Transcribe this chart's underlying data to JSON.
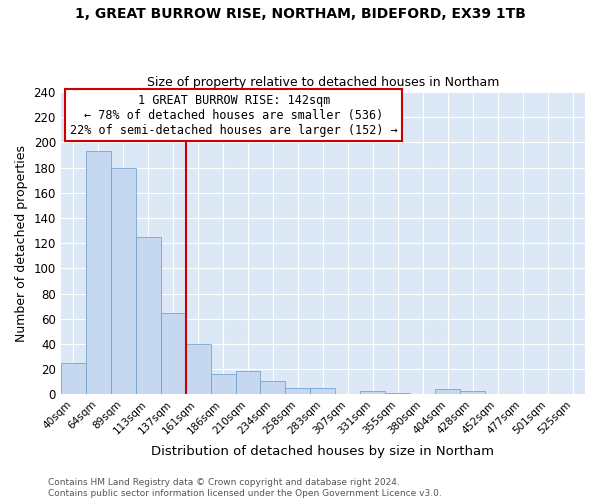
{
  "title": "1, GREAT BURROW RISE, NORTHAM, BIDEFORD, EX39 1TB",
  "subtitle": "Size of property relative to detached houses in Northam",
  "xlabel": "Distribution of detached houses by size in Northam",
  "ylabel": "Number of detached properties",
  "bar_labels": [
    "40sqm",
    "64sqm",
    "89sqm",
    "113sqm",
    "137sqm",
    "161sqm",
    "186sqm",
    "210sqm",
    "234sqm",
    "258sqm",
    "283sqm",
    "307sqm",
    "331sqm",
    "355sqm",
    "380sqm",
    "404sqm",
    "428sqm",
    "452sqm",
    "477sqm",
    "501sqm",
    "525sqm"
  ],
  "bar_values": [
    25,
    193,
    180,
    125,
    65,
    40,
    16,
    19,
    11,
    5,
    5,
    0,
    3,
    1,
    0,
    4,
    3,
    0,
    0,
    0,
    0
  ],
  "bar_color": "#c5d8f0",
  "bar_edge_color": "#6699cc",
  "vline_x": 4.5,
  "vline_color": "#cc0000",
  "annotation_line1": "1 GREAT BURROW RISE: 142sqm",
  "annotation_line2": "← 78% of detached houses are smaller (536)",
  "annotation_line3": "22% of semi-detached houses are larger (152) →",
  "annotation_box_color": "#cc0000",
  "ylim": [
    0,
    240
  ],
  "yticks": [
    0,
    20,
    40,
    60,
    80,
    100,
    120,
    140,
    160,
    180,
    200,
    220,
    240
  ],
  "axes_bg_color": "#dce8f5",
  "fig_bg_color": "#ffffff",
  "grid_color": "#ffffff",
  "footer_line1": "Contains HM Land Registry data © Crown copyright and database right 2024.",
  "footer_line2": "Contains public sector information licensed under the Open Government Licence v3.0."
}
